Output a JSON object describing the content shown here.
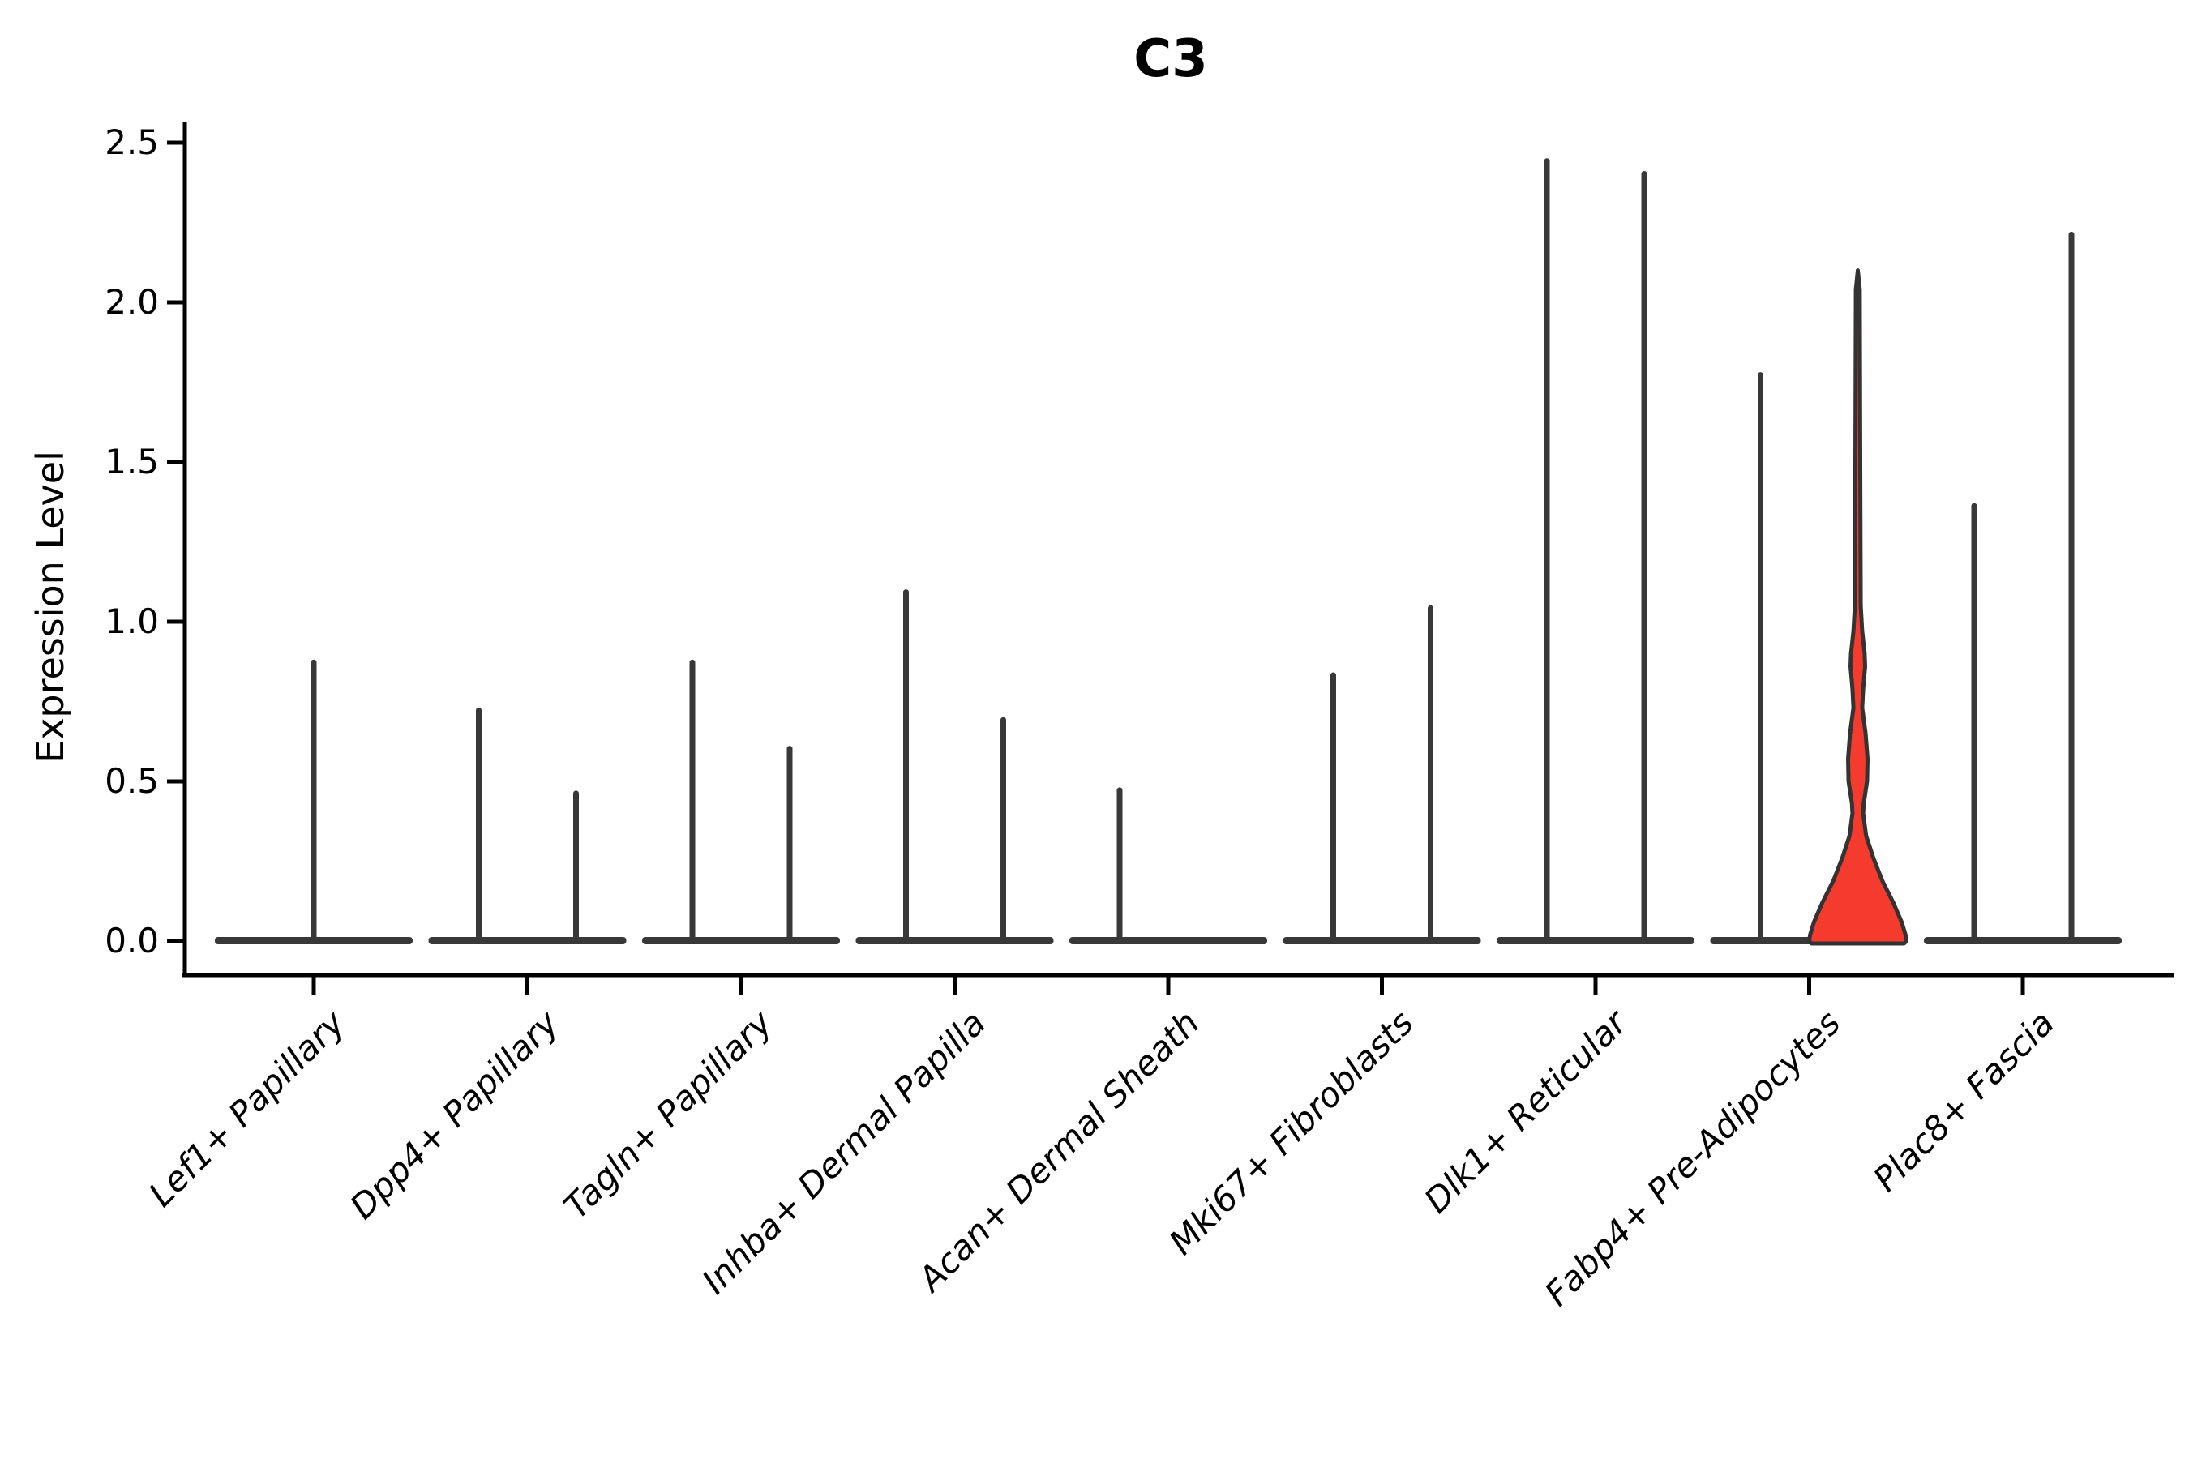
{
  "chart_data": {
    "type": "violin",
    "title": "C3",
    "ylabel": "Expression Level",
    "xlabel": "",
    "ylim": [
      0,
      2.5
    ],
    "yticks": [
      0.0,
      0.5,
      1.0,
      1.5,
      2.0,
      2.5
    ],
    "ytick_labels": [
      "0.0",
      "0.5",
      "1.0",
      "1.5",
      "2.0",
      "2.5"
    ],
    "categories": [
      "Lef1+ Papillary",
      "Dpp4+ Papillary",
      "Tagln+ Papillary",
      "Inhba+ Dermal Papilla",
      "Acan+ Dermal Sheath",
      "Mki67+ Fibroblasts",
      "Dlk1+ Reticular",
      "Fabp4+ Pre-Adipocytes",
      "Plac8+ Fascia"
    ],
    "legend": "none",
    "grid": "off",
    "description": "Violin plot of C3 expression per fibroblast subtype; most cells express near 0 so violins collapse to a wide flat base at 0 with hairline spikes up to the maximum expressed value. Two dodged violins per category where two sub-groups exist. The right-hand violin of Fabp4+ Pre-Adipocytes is highlighted red and shows visible density bulges.",
    "violins": [
      {
        "category": "Lef1+ Papillary",
        "slot": 0,
        "position": "center",
        "max_expression": 0.88,
        "color": "dark"
      },
      {
        "category": "Dpp4+ Papillary",
        "slot": 1,
        "position": "left",
        "max_expression": 0.73,
        "color": "dark"
      },
      {
        "category": "Dpp4+ Papillary",
        "slot": 1,
        "position": "right",
        "max_expression": 0.47,
        "color": "dark"
      },
      {
        "category": "Tagln+ Papillary",
        "slot": 2,
        "position": "left",
        "max_expression": 0.88,
        "color": "dark"
      },
      {
        "category": "Tagln+ Papillary",
        "slot": 2,
        "position": "right",
        "max_expression": 0.61,
        "color": "dark"
      },
      {
        "category": "Inhba+ Dermal Papilla",
        "slot": 3,
        "position": "left",
        "max_expression": 1.1,
        "color": "dark"
      },
      {
        "category": "Inhba+ Dermal Papilla",
        "slot": 3,
        "position": "right",
        "max_expression": 0.7,
        "color": "dark"
      },
      {
        "category": "Acan+ Dermal Sheath",
        "slot": 4,
        "position": "left",
        "max_expression": 0.48,
        "color": "dark"
      },
      {
        "category": "Mki67+ Fibroblasts",
        "slot": 5,
        "position": "left",
        "max_expression": 0.84,
        "color": "dark"
      },
      {
        "category": "Mki67+ Fibroblasts",
        "slot": 5,
        "position": "right",
        "max_expression": 1.05,
        "color": "dark"
      },
      {
        "category": "Dlk1+ Reticular",
        "slot": 6,
        "position": "left",
        "max_expression": 2.45,
        "color": "dark"
      },
      {
        "category": "Dlk1+ Reticular",
        "slot": 6,
        "position": "right",
        "max_expression": 2.41,
        "color": "dark"
      },
      {
        "category": "Fabp4+ Pre-Adipocytes",
        "slot": 7,
        "position": "left",
        "max_expression": 1.78,
        "color": "dark"
      },
      {
        "category": "Fabp4+ Pre-Adipocytes",
        "slot": 7,
        "position": "right",
        "max_expression": 2.1,
        "color": "red",
        "profile": [
          [
            2.1,
            0.0
          ],
          [
            2.04,
            0.04
          ],
          [
            1.5,
            0.05
          ],
          [
            1.05,
            0.06
          ],
          [
            0.97,
            0.09
          ],
          [
            0.9,
            0.14
          ],
          [
            0.86,
            0.15
          ],
          [
            0.79,
            0.11
          ],
          [
            0.73,
            0.09
          ],
          [
            0.65,
            0.16
          ],
          [
            0.57,
            0.2
          ],
          [
            0.5,
            0.19
          ],
          [
            0.43,
            0.12
          ],
          [
            0.4,
            0.11
          ],
          [
            0.33,
            0.17
          ],
          [
            0.26,
            0.32
          ],
          [
            0.19,
            0.5
          ],
          [
            0.12,
            0.73
          ],
          [
            0.06,
            0.9
          ],
          [
            0.02,
            0.98
          ],
          [
            0.0,
            1.0
          ]
        ]
      },
      {
        "category": "Plac8+ Fascia",
        "slot": 8,
        "position": "left",
        "max_expression": 1.37,
        "color": "dark"
      },
      {
        "category": "Plac8+ Fascia",
        "slot": 8,
        "position": "right",
        "max_expression": 2.22,
        "color": "dark"
      }
    ],
    "colors": {
      "violin_dark": "#383838",
      "highlight_fill": "#F53B2D",
      "highlight_stroke": "#333333",
      "axis": "#000000",
      "text": "#000000",
      "background": "#ffffff"
    }
  }
}
